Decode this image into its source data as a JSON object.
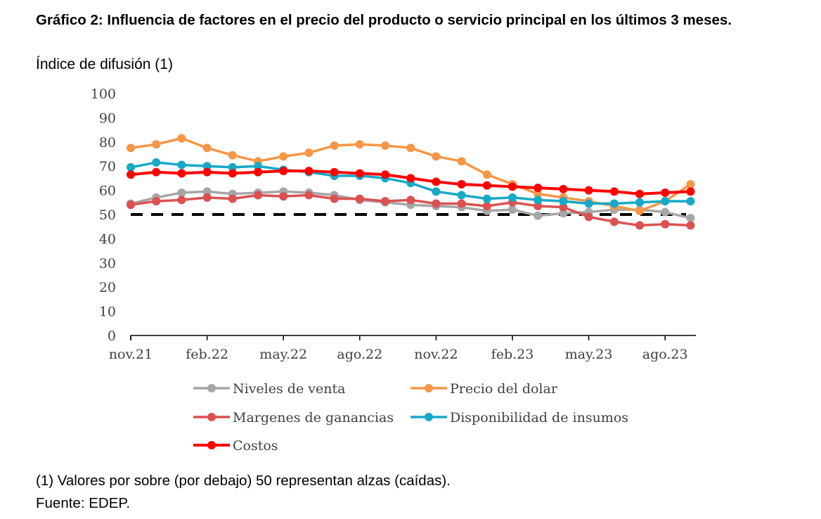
{
  "header": {
    "title": "Gráfico 2: Influencia de factores en el precio del producto o servicio principal en los últimos 3 meses.",
    "subtitle": "Índice de difusión (1)"
  },
  "footer": {
    "note": "(1) Valores por sobre (por debajo) 50 representan alzas (caídas).",
    "source": "Fuente: EDEP."
  },
  "chart_data": {
    "type": "line",
    "title": "Gráfico 2: Influencia de factores en el precio del producto o servicio principal en los últimos 3 meses.",
    "ylabel": "Índice de difusión (1)",
    "xlabel": "",
    "ylim": [
      0,
      100
    ],
    "yticks": [
      0,
      10,
      20,
      30,
      40,
      50,
      60,
      70,
      80,
      90,
      100
    ],
    "x": [
      "nov.21",
      "dic.21",
      "ene.22",
      "feb.22",
      "mar.22",
      "abr.22",
      "may.22",
      "jun.22",
      "jul.22",
      "ago.22",
      "sep.22",
      "oct.22",
      "nov.22",
      "dic.22",
      "ene.23",
      "feb.23",
      "mar.23",
      "abr.23",
      "may.23",
      "jun.23",
      "jul.23",
      "ago.23",
      "sep.23"
    ],
    "xtick_labels": [
      {
        "index": 0,
        "label": "nov.21"
      },
      {
        "index": 3,
        "label": "feb.22"
      },
      {
        "index": 6,
        "label": "may.22"
      },
      {
        "index": 9,
        "label": "ago.22"
      },
      {
        "index": 12,
        "label": "nov.22"
      },
      {
        "index": 15,
        "label": "feb.23"
      },
      {
        "index": 18,
        "label": "may.23"
      },
      {
        "index": 21,
        "label": "ago.23"
      }
    ],
    "reference_line": {
      "value": 50,
      "style": "dashed",
      "color": "#000000"
    },
    "series": [
      {
        "name": "Niveles de venta",
        "color": "#a6a6a6",
        "values": [
          54.5,
          57,
          59,
          59.5,
          58.5,
          59,
          59.5,
          59,
          58,
          56,
          55,
          54,
          53.5,
          53,
          51.5,
          52,
          49.5,
          50.5,
          51,
          52,
          52,
          51,
          48.5
        ]
      },
      {
        "name": "Precio del dolar",
        "color": "#f79646",
        "values": [
          77.5,
          79,
          81.5,
          77.5,
          74.5,
          72,
          74,
          75.5,
          78.5,
          79,
          78.5,
          77.5,
          74,
          72,
          66.5,
          62.5,
          58.5,
          57,
          55.5,
          53.5,
          51.5,
          55.5,
          62.5
        ]
      },
      {
        "name": "Margenes de ganancias",
        "color": "#dc5050",
        "values": [
          54,
          55.5,
          56,
          57,
          56.5,
          58,
          57.5,
          58,
          56.5,
          56.5,
          55.5,
          56,
          54.5,
          54.5,
          53.5,
          55,
          53.5,
          53,
          49,
          47,
          45.5,
          46,
          45.5
        ]
      },
      {
        "name": "Disponibilidad de insumos",
        "color": "#17a9c7",
        "values": [
          69.5,
          71.5,
          70.5,
          70,
          69.5,
          70,
          68.5,
          67.5,
          66,
          66,
          65,
          63,
          59.5,
          58,
          56.5,
          57,
          56,
          55.5,
          54.5,
          54.5,
          55,
          55.5,
          55.5
        ]
      },
      {
        "name": "Costos",
        "color": "#ff0000",
        "values": [
          66.5,
          67.5,
          67,
          67.5,
          67,
          67.5,
          68,
          68,
          67.5,
          67,
          66.5,
          65,
          63.5,
          62.5,
          62,
          61.5,
          61,
          60.5,
          60,
          59.5,
          58.5,
          59,
          59.5
        ]
      }
    ],
    "legend": [
      {
        "label": "Niveles de venta",
        "color": "#a6a6a6"
      },
      {
        "label": "Precio del dolar",
        "color": "#f79646"
      },
      {
        "label": "Margenes de ganancias",
        "color": "#dc5050"
      },
      {
        "label": "Disponibilidad de insumos",
        "color": "#17a9c7"
      },
      {
        "label": "Costos",
        "color": "#ff0000"
      }
    ]
  }
}
